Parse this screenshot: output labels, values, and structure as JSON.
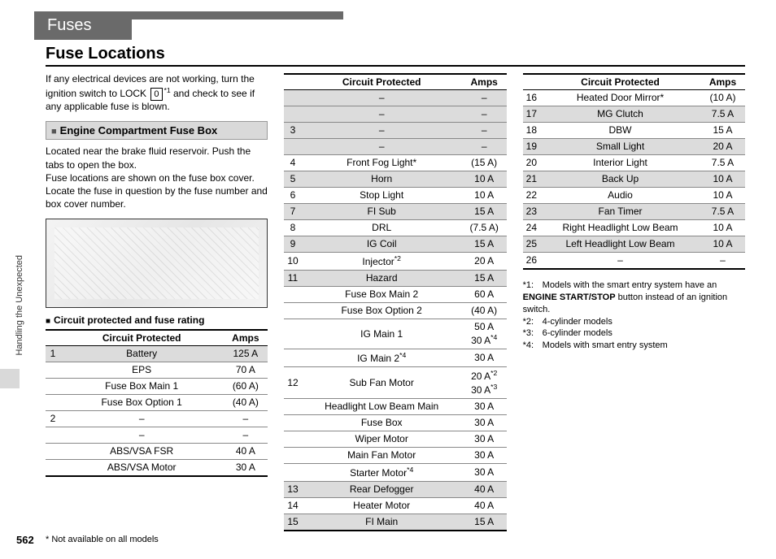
{
  "header": {
    "tab": "Fuses",
    "title": "Fuse Locations"
  },
  "side_caption": "Handling the Unexpected",
  "page_number": "562",
  "bottom_note": "* Not available on all models",
  "col1": {
    "intro_a": "If any electrical devices are not working, turn the ignition switch to LOCK ",
    "intro_lock": "0",
    "intro_b": " and check to see if any applicable fuse is blown.",
    "sup1": "*1",
    "sub_hdr": "Engine Compartment Fuse Box",
    "body": "Located near the brake fluid reservoir. Push the tabs to open the box.\nFuse locations are shown on the fuse box cover. Locate the fuse in question by the fuse number and box cover number.",
    "fig_caption": "Circuit protected and fuse rating",
    "th": [
      "",
      "Circuit Protected",
      "Amps"
    ],
    "rows": [
      {
        "n": "1",
        "c": "Battery",
        "a": "125 A",
        "shade": true
      },
      {
        "n": "",
        "c": "EPS",
        "a": "70 A"
      },
      {
        "n": "",
        "c": "Fuse Box Main 1",
        "a": "(60 A)"
      },
      {
        "n": "",
        "c": "Fuse Box Option 1",
        "a": "(40 A)"
      },
      {
        "n": "2",
        "c": "–",
        "a": "–"
      },
      {
        "n": "",
        "c": "–",
        "a": "–"
      },
      {
        "n": "",
        "c": "ABS/VSA FSR",
        "a": "40 A"
      },
      {
        "n": "",
        "c": "ABS/VSA Motor",
        "a": "30 A",
        "last": true
      }
    ]
  },
  "col2": {
    "th": [
      "",
      "Circuit Protected",
      "Amps"
    ],
    "rows": [
      {
        "n": "",
        "c": "–",
        "a": "–",
        "shade": true
      },
      {
        "n": "",
        "c": "–",
        "a": "–",
        "shade": true
      },
      {
        "n": "3",
        "c": "–",
        "a": "–",
        "shade": true
      },
      {
        "n": "",
        "c": "–",
        "a": "–",
        "shade": true
      },
      {
        "n": "4",
        "c": "Front Fog Light*",
        "a": "(15 A)"
      },
      {
        "n": "5",
        "c": "Horn",
        "a": "10 A",
        "shade": true
      },
      {
        "n": "6",
        "c": "Stop Light",
        "a": "10 A"
      },
      {
        "n": "7",
        "c": "FI Sub",
        "a": "15 A",
        "shade": true
      },
      {
        "n": "8",
        "c": "DRL",
        "a": "(7.5 A)"
      },
      {
        "n": "9",
        "c": "IG Coil",
        "a": "15 A",
        "shade": true
      },
      {
        "n": "10",
        "c": "Injector*2",
        "a": "20 A"
      },
      {
        "n": "11",
        "c": "Hazard",
        "a": "15 A",
        "shade": true
      },
      {
        "n": "",
        "c": "Fuse Box Main 2",
        "a": "60 A"
      },
      {
        "n": "",
        "c": "Fuse Box Option 2",
        "a": "(40 A)"
      },
      {
        "n": "",
        "c": "IG Main 1",
        "a": "50 A\n30 A*4"
      },
      {
        "n": "",
        "c": "IG Main 2*4",
        "a": "30 A"
      },
      {
        "n": "12",
        "c": "Sub Fan Motor",
        "a": "20 A*2\n30 A*3"
      },
      {
        "n": "",
        "c": "Headlight Low Beam Main",
        "a": "30 A"
      },
      {
        "n": "",
        "c": "Fuse Box",
        "a": "30 A"
      },
      {
        "n": "",
        "c": "Wiper Motor",
        "a": "30 A"
      },
      {
        "n": "",
        "c": "Main Fan Motor",
        "a": "30 A"
      },
      {
        "n": "",
        "c": "Starter Motor*4",
        "a": "30 A"
      },
      {
        "n": "13",
        "c": "Rear Defogger",
        "a": "40 A",
        "shade": true
      },
      {
        "n": "14",
        "c": "Heater Motor",
        "a": "40 A"
      },
      {
        "n": "15",
        "c": "FI Main",
        "a": "15 A",
        "shade": true,
        "last": true
      }
    ]
  },
  "col3": {
    "th": [
      "",
      "Circuit Protected",
      "Amps"
    ],
    "rows": [
      {
        "n": "16",
        "c": "Heated Door Mirror*",
        "a": "(10 A)"
      },
      {
        "n": "17",
        "c": "MG Clutch",
        "a": "7.5 A",
        "shade": true
      },
      {
        "n": "18",
        "c": "DBW",
        "a": "15 A"
      },
      {
        "n": "19",
        "c": "Small Light",
        "a": "20 A",
        "shade": true
      },
      {
        "n": "20",
        "c": "Interior Light",
        "a": "7.5 A"
      },
      {
        "n": "21",
        "c": "Back Up",
        "a": "10 A",
        "shade": true
      },
      {
        "n": "22",
        "c": "Audio",
        "a": "10 A"
      },
      {
        "n": "23",
        "c": "Fan Timer",
        "a": "7.5 A",
        "shade": true
      },
      {
        "n": "24",
        "c": "Right Headlight Low Beam",
        "a": "10 A"
      },
      {
        "n": "25",
        "c": "Left Headlight Low Beam",
        "a": "10 A",
        "shade": true
      },
      {
        "n": "26",
        "c": "–",
        "a": "–",
        "last": true
      }
    ],
    "notes": [
      {
        "k": "*1:",
        "t_a": "Models with the smart entry system have an ",
        "t_bold": "ENGINE START/STOP",
        "t_b": " button instead of an ignition switch."
      },
      {
        "k": "*2:",
        "t": "4-cylinder models"
      },
      {
        "k": "*3:",
        "t": "6-cylinder models"
      },
      {
        "k": "*4:",
        "t": "Models with smart entry system"
      }
    ]
  }
}
